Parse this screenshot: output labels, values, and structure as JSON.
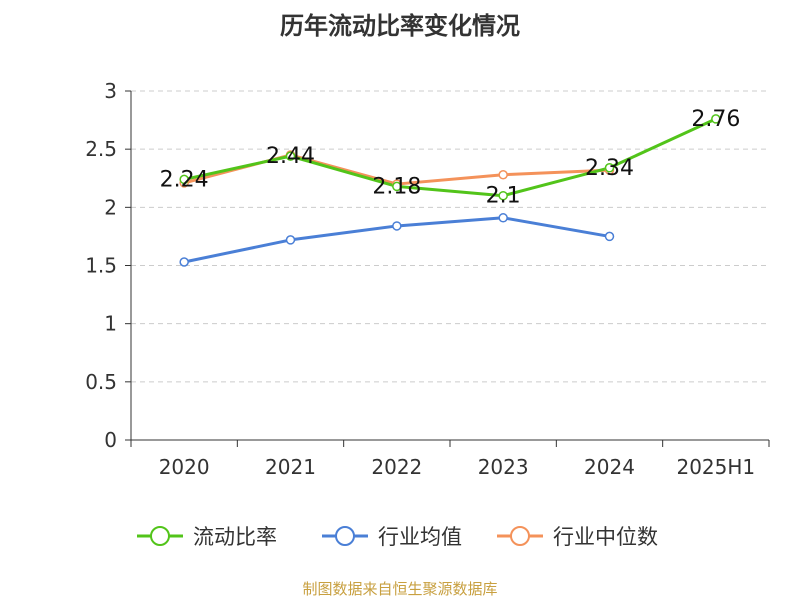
{
  "chart_data": {
    "type": "line",
    "title": "历年流动比率变化情况",
    "categories": [
      "2020",
      "2021",
      "2022",
      "2023",
      "2024",
      "2025H1"
    ],
    "y_ticks": [
      "0",
      "0.5",
      "1",
      "1.5",
      "2",
      "2.5",
      "3"
    ],
    "ylim": [
      0,
      3
    ],
    "grid": true,
    "legend_placement": "bottom",
    "series": [
      {
        "name": "流动比率",
        "color": "#52c41a",
        "values": [
          2.24,
          2.44,
          2.18,
          2.1,
          2.34,
          2.76
        ],
        "labels": [
          "2.24",
          "2.44",
          "2.18",
          "2.1",
          "2.34",
          "2.76"
        ]
      },
      {
        "name": "行业均值",
        "color": "#4a7fd6",
        "values": [
          1.53,
          1.72,
          1.84,
          1.91,
          1.75,
          null
        ]
      },
      {
        "name": "行业中位数",
        "color": "#f4925a",
        "values": [
          2.21,
          2.45,
          2.2,
          2.28,
          2.32,
          null
        ]
      }
    ]
  },
  "footer": {
    "source": "制图数据来自恒生聚源数据库",
    "color": "#c8a040"
  }
}
